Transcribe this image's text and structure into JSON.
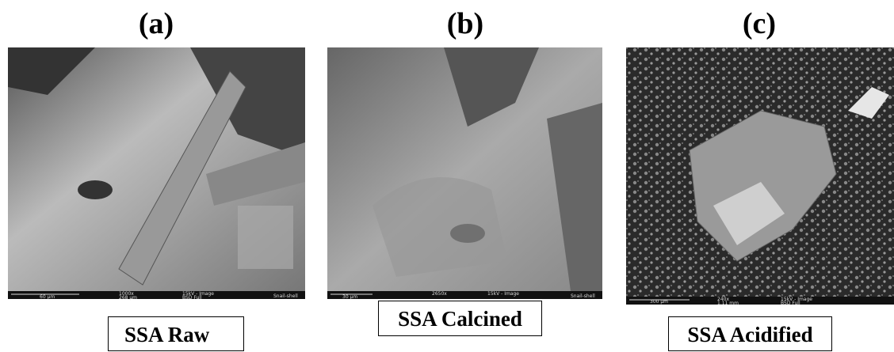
{
  "panels": [
    {
      "label": "(a)",
      "caption": "SSA Raw",
      "info": {
        "scale": "60 µm",
        "mag": "1000x",
        "field": "268 µm",
        "mode": "15kV - Image",
        "detector": "BSD Full",
        "sample": "Snail-shell"
      }
    },
    {
      "label": "(b)",
      "caption": "SSA Calcined",
      "info": {
        "scale": "30 µm",
        "mag": "2650x",
        "mode": "15kV - Image",
        "sample": "Snail-shell"
      }
    },
    {
      "label": "(c)",
      "caption": "SSA Acidified",
      "info": {
        "scale": "300 µm",
        "mag": "240x",
        "field": "1.11 mm",
        "mode": "15kV - Image",
        "detector": "BSD Full"
      }
    }
  ]
}
